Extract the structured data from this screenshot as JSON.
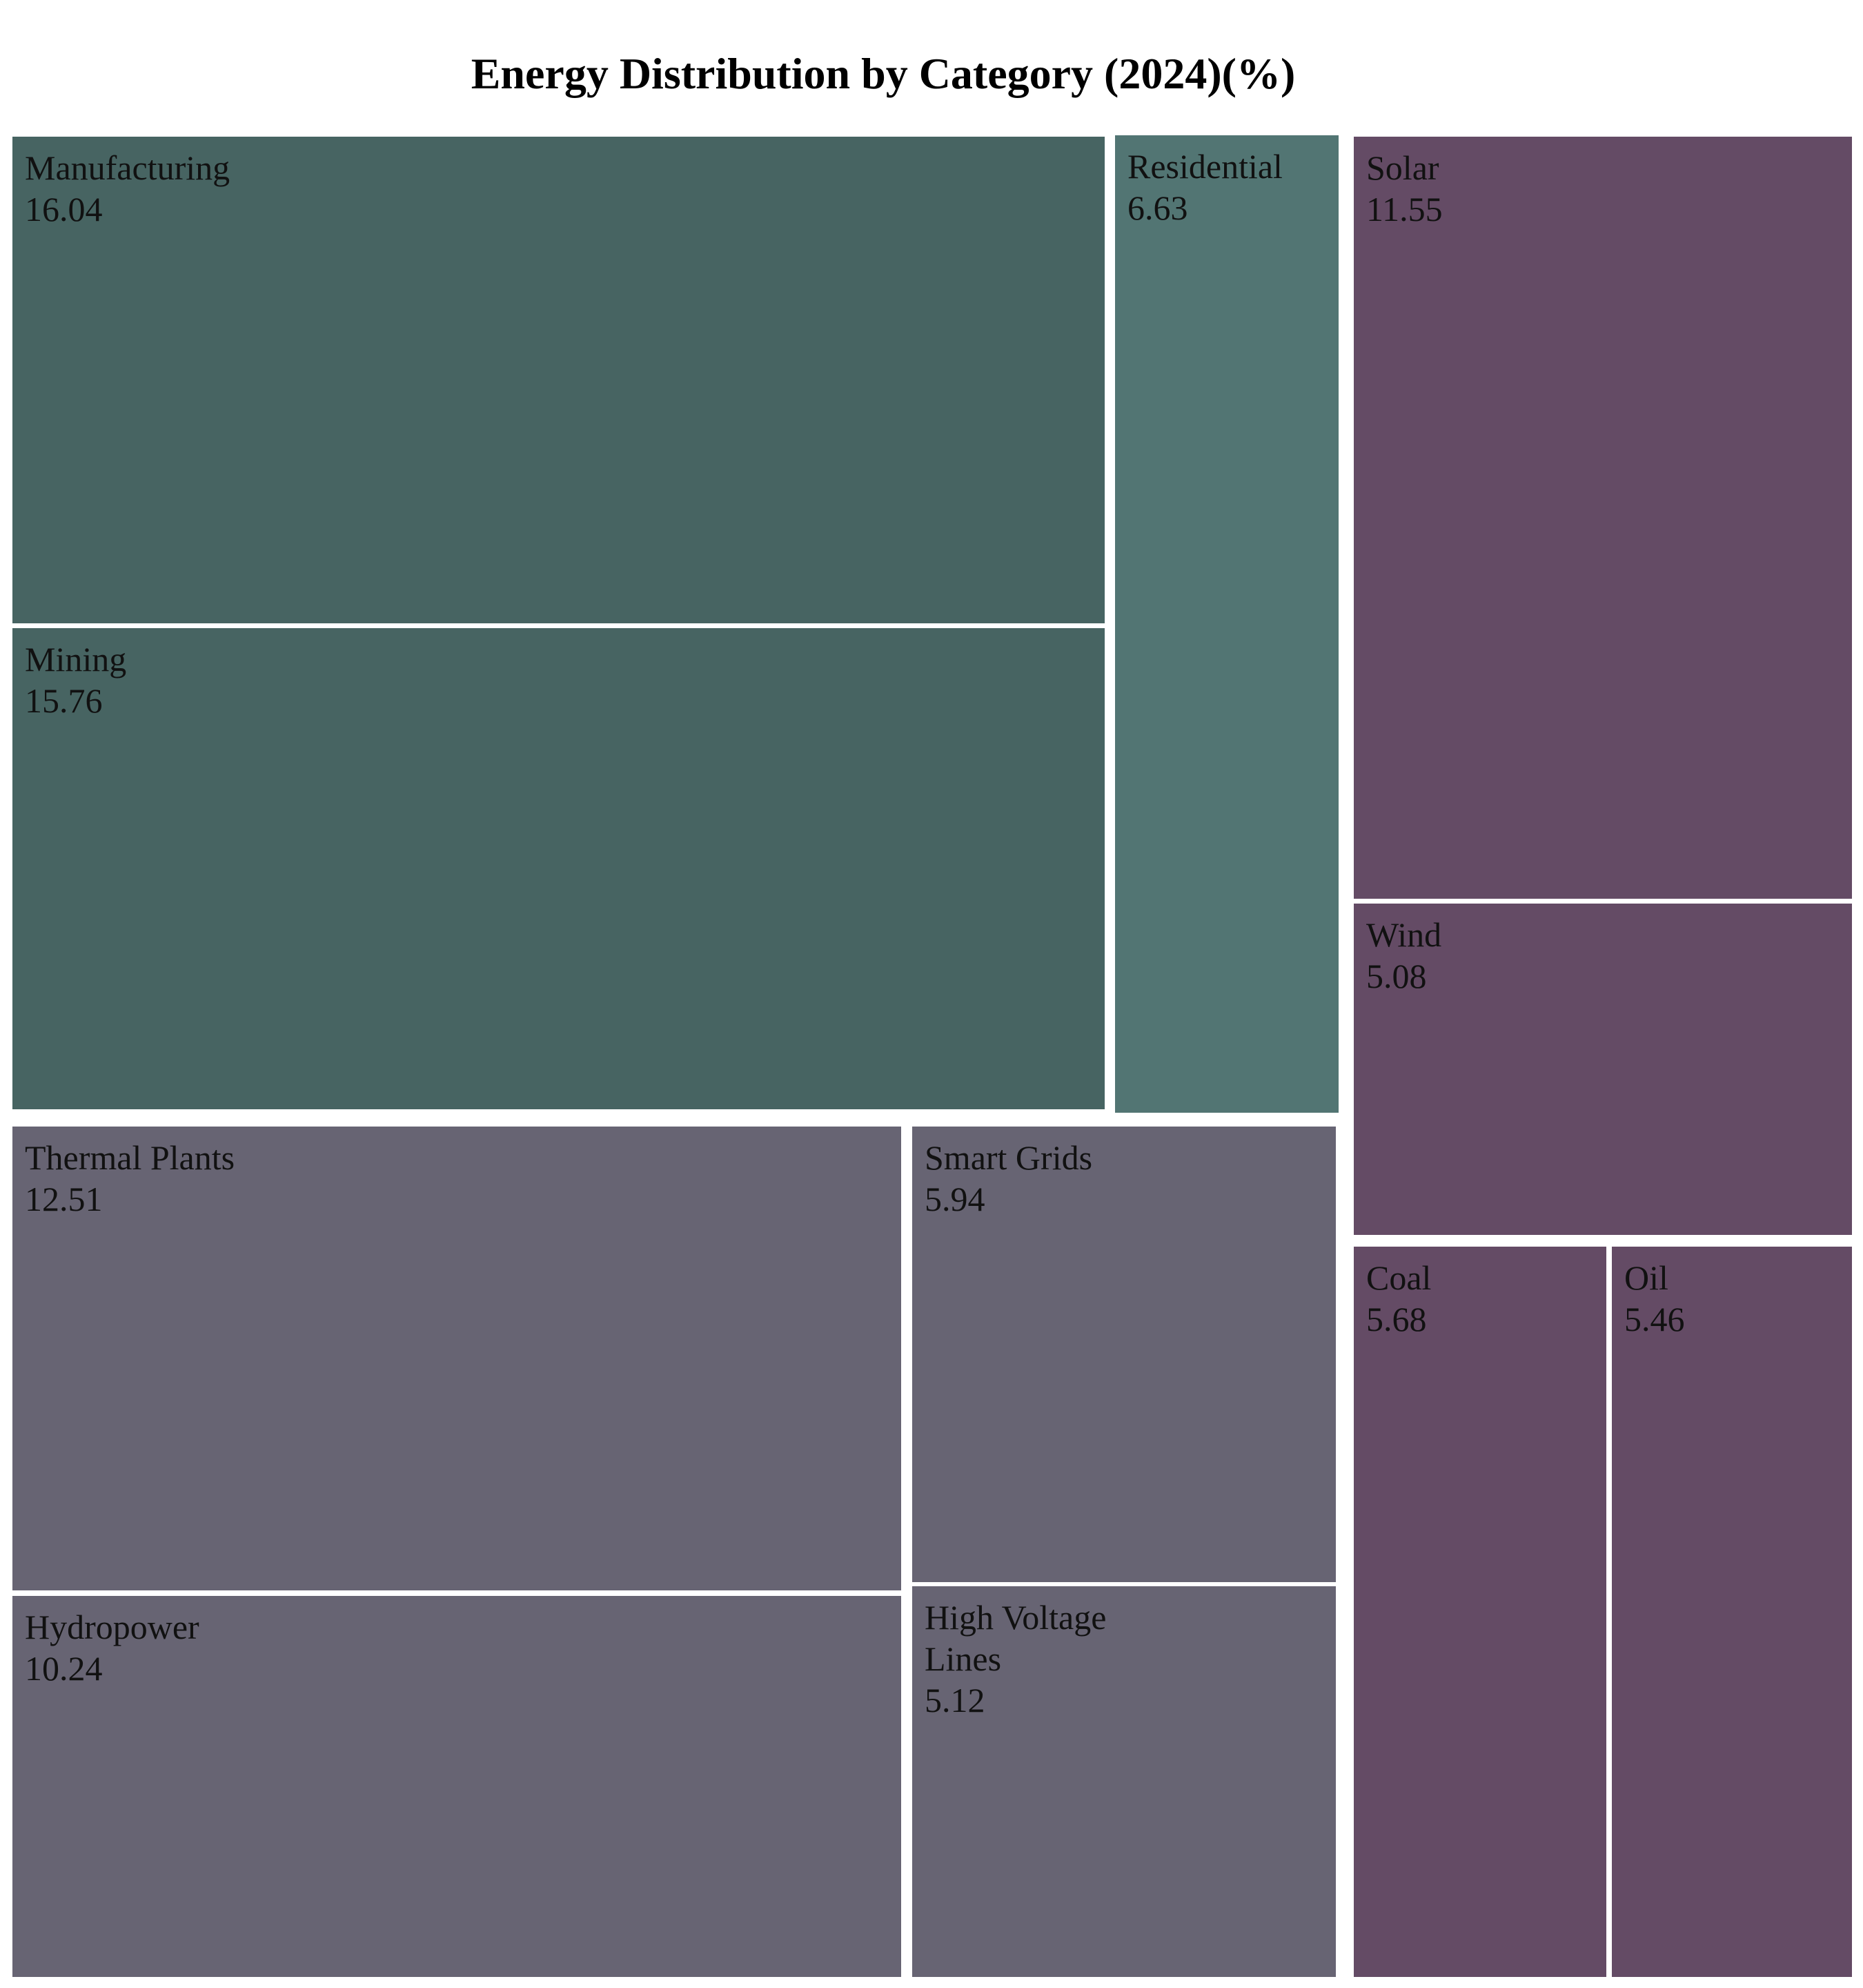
{
  "chart_data": {
    "type": "treemap",
    "title": "Energy Distribution by Category (2024)(%)",
    "groups": [
      {
        "color": "#476462",
        "items": [
          {
            "label": "Manufacturing",
            "value": 16.04
          },
          {
            "label": "Mining",
            "value": 15.76
          }
        ]
      },
      {
        "color": "#527573",
        "items": [
          {
            "label": "Residential",
            "value": 6.63
          }
        ]
      },
      {
        "color": "#644b65",
        "items": [
          {
            "label": "Solar",
            "value": 11.55
          },
          {
            "label": "Wind",
            "value": 5.08
          },
          {
            "label": "Coal",
            "value": 5.68
          },
          {
            "label": "Oil",
            "value": 5.46
          }
        ]
      },
      {
        "color": "#676473",
        "items": [
          {
            "label": "Thermal Plants",
            "value": 12.51
          },
          {
            "label": "Hydropower",
            "value": 10.24
          },
          {
            "label": "Smart Grids",
            "value": 5.94
          },
          {
            "label": "High Voltage Lines",
            "value": 5.12
          }
        ]
      }
    ]
  }
}
